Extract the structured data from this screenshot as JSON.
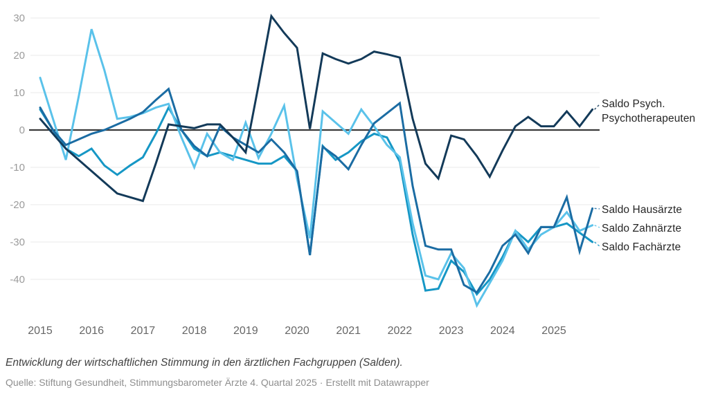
{
  "chart": {
    "notes": "Entwicklung der wirtschaftlichen Stimmung in den ärztlichen Fachgruppen (Salden).",
    "source_prefix": "Quelle: Stiftung Gesundheit, Stimmungsbarometer Ärzte 4. Quartal 2025",
    "separator": "·",
    "attribution": "Erstellt mit Datawrapper",
    "legend": {
      "psych_line1": "Saldo Psych.",
      "psych_line2": "Psychotherapeuten",
      "hausaerzte": "Saldo Hausärzte",
      "zahnaerzte": "Saldo Zahnärzte",
      "fachaerzte": "Saldo Fachärzte"
    }
  },
  "chart_data": {
    "type": "line",
    "title": "",
    "xlabel": "",
    "ylabel": "",
    "grid": "horizontal",
    "zero_baseline": true,
    "legend_position": "right-direct-labels",
    "x_tick_labels": [
      "2015",
      "2016",
      "2017",
      "2018",
      "2019",
      "2020",
      "2021",
      "2022",
      "2023",
      "2024",
      "2025"
    ],
    "y_tick_values": [
      30,
      20,
      10,
      0,
      -10,
      -20,
      -30,
      -40
    ],
    "ylim": [
      -48,
      31
    ],
    "xlim": [
      2015,
      2025.75
    ],
    "x": [
      2015,
      2015.25,
      2015.5,
      2015.75,
      2016,
      2016.25,
      2016.5,
      2016.75,
      2017,
      2017.25,
      2017.5,
      2017.75,
      2018,
      2018.25,
      2018.5,
      2018.75,
      2019,
      2019.25,
      2019.5,
      2019.75,
      2020,
      2020.25,
      2020.5,
      2020.75,
      2021,
      2021.25,
      2021.5,
      2021.75,
      2022,
      2022.25,
      2022.5,
      2022.75,
      2023,
      2023.25,
      2023.5,
      2023.75,
      2024,
      2024.25,
      2024.5,
      2024.75,
      2025,
      2025.25,
      2025.5,
      2025.75
    ],
    "series": [
      {
        "id": "psych",
        "name": "Saldo Psych. Psychotherapeuten",
        "color": "#133a59",
        "values": [
          3,
          -1,
          -5,
          -8,
          -11,
          -14,
          -17,
          -18,
          -19,
          -9,
          1.5,
          1,
          0.5,
          1.5,
          1.5,
          -2,
          -6,
          12,
          30.5,
          26,
          22,
          0.3,
          20.5,
          19,
          17.8,
          19,
          21,
          20.3,
          19.4,
          3,
          -9,
          -13,
          -1.5,
          -2.5,
          -7,
          -12.5,
          -5.5,
          1,
          3.5,
          1,
          1,
          5,
          1,
          5.5
        ]
      },
      {
        "id": "hausaerzte",
        "name": "Saldo Hausärzte",
        "color": "#1b6ca3",
        "values": [
          6,
          0,
          -4,
          -2.5,
          -1,
          0,
          1.5,
          3,
          4.8,
          8,
          11,
          0,
          -4.3,
          -7,
          1,
          -2,
          -4,
          -6,
          -2.5,
          -6,
          -11,
          -33.5,
          -4.5,
          -7,
          -10.5,
          -4,
          1.8,
          4.5,
          7.2,
          -15,
          -31,
          -32,
          -32,
          -41.5,
          -43.5,
          -38,
          -31,
          -28,
          -33,
          -26,
          -26,
          -18,
          -32.5,
          -21
        ]
      },
      {
        "id": "zahnaerzte",
        "name": "Saldo Zahnärzte",
        "color": "#5ac2ea",
        "values": [
          14,
          3,
          -8,
          9,
          27,
          16,
          3,
          3.5,
          4.5,
          6,
          7,
          -2,
          -10,
          -1,
          -6,
          -8,
          2,
          -7.5,
          -1,
          6.5,
          -13,
          -29,
          5,
          2,
          -1,
          5.5,
          1,
          -4,
          -7.3,
          -25,
          -39,
          -40,
          -33,
          -37,
          -47,
          -41,
          -35,
          -27,
          -32,
          -28,
          -26,
          -22,
          -27,
          -25.5
        ]
      },
      {
        "id": "fachaerzte",
        "name": "Saldo Fachärzte",
        "color": "#1697c5",
        "values": [
          5.5,
          0,
          -5,
          -7,
          -5,
          -9.5,
          -12,
          -9.5,
          -7.3,
          -1,
          6,
          0,
          -5,
          -7,
          -6,
          -7,
          -8,
          -9,
          -9,
          -7,
          -11,
          -33.5,
          -4.3,
          -8,
          -6,
          -3,
          -1,
          -2,
          -8.5,
          -28,
          -43,
          -42.5,
          -35,
          -38,
          -44,
          -40,
          -34,
          -27,
          -30,
          -26,
          -26,
          -25,
          -27.5,
          -30
        ]
      }
    ]
  }
}
